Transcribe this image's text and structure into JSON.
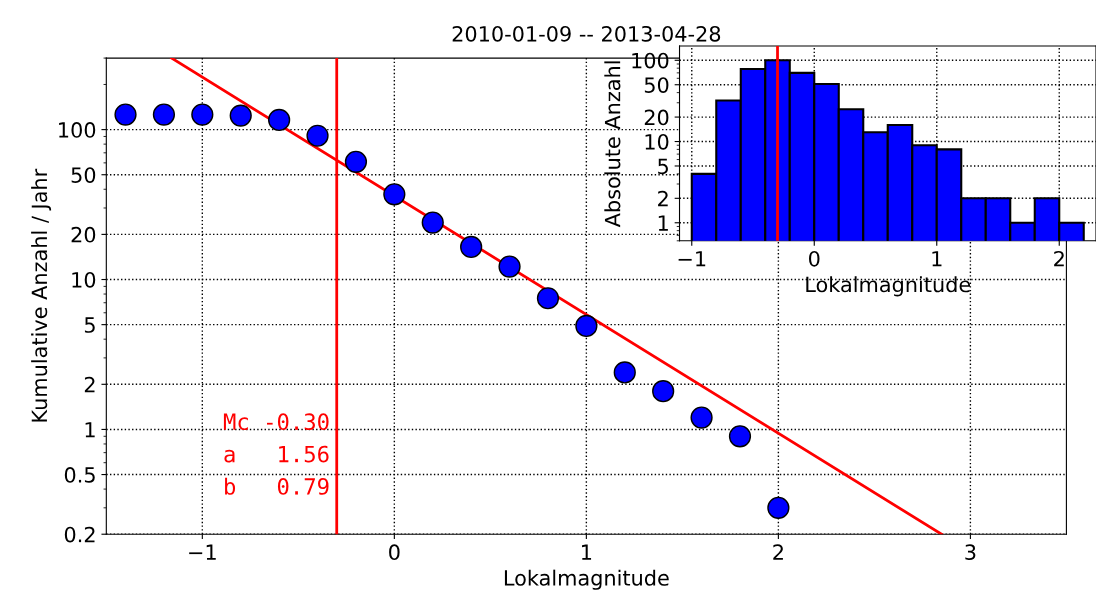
{
  "chart_data": [
    {
      "type": "scatter",
      "title": "2010-01-09 -- 2013-04-28",
      "xlabel": "Lokalmagnitude",
      "ylabel": "Kumulative Anzahl / Jahr",
      "log": "y",
      "grid": true,
      "xlim": [
        -1.5,
        3.5
      ],
      "xticks": [
        {
          "value": -1,
          "label": "−1"
        },
        0,
        1,
        2,
        3
      ],
      "ylim": [
        0.2,
        300
      ],
      "yticks": [
        0.2,
        0.5,
        1,
        2,
        5,
        10,
        20,
        50,
        100
      ],
      "series": [
        {
          "type": "scatter",
          "marker": "circle",
          "color": "#0000ff",
          "x": [
            -1.4,
            -1.2,
            -1.0,
            -0.8,
            -0.6,
            -0.4,
            -0.2,
            0,
            0.2,
            0.4,
            0.6,
            0.8,
            1.0,
            1.2,
            1.4,
            1.6,
            1.8,
            2.0
          ],
          "values": [
            126,
            126,
            126,
            124,
            116,
            91,
            61,
            37,
            24,
            16.5,
            12.2,
            7.5,
            4.9,
            2.4,
            1.8,
            1.2,
            0.9,
            0.3
          ]
        },
        {
          "type": "line",
          "color": "#ff0000",
          "x": [
            -1.16,
            2.85
          ],
          "values": [
            300,
            0.2
          ],
          "line_style": "solid"
        }
      ],
      "ref_lines": [
        {
          "axis": "x",
          "value": -0.3,
          "color": "#ff0000"
        }
      ],
      "annotations": [
        "Mc -0.30",
        "a   1.56",
        "b   0.79"
      ]
    },
    {
      "type": "histogram",
      "xlabel": "Lokalmagnitude",
      "ylabel": "Absolute Anzahl",
      "log": "y",
      "grid": true,
      "color": "#0000ff",
      "bins": [
        -1.0,
        -0.8,
        -0.6,
        -0.4,
        -0.2,
        0,
        0.2,
        0.4,
        0.6,
        0.8,
        1.0,
        1.2,
        1.4,
        1.6,
        1.8,
        2.0,
        2.2
      ],
      "values": [
        4,
        32,
        78,
        100,
        70,
        51,
        25,
        13,
        16,
        9,
        8,
        2,
        2,
        1,
        2,
        1
      ],
      "xlim": [
        -1.1,
        2.3
      ],
      "xticks": [
        {
          "value": -1,
          "label": "−1"
        },
        0,
        1,
        2
      ],
      "ylim": [
        0.6,
        150
      ],
      "yticks": [
        1,
        2,
        5,
        10,
        20,
        50,
        100
      ],
      "ref_lines": [
        {
          "axis": "x",
          "value": -0.3,
          "color": "#ff0000"
        }
      ]
    }
  ]
}
